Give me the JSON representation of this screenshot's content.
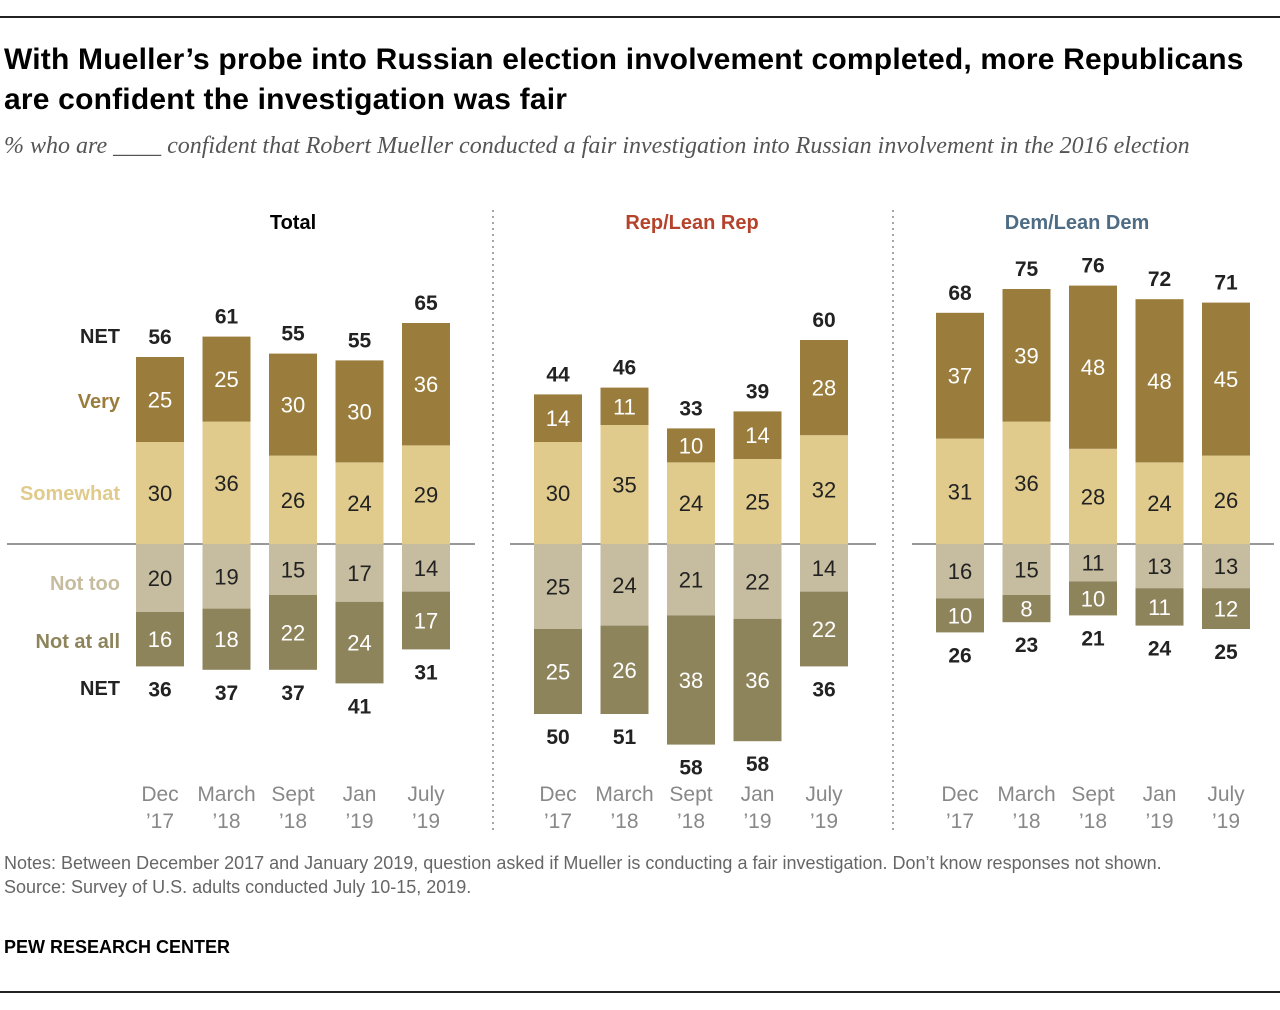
{
  "title": "With Mueller’s probe into Russian election involvement completed, more Republicans are confident the investigation was fair",
  "subtitle": "% who are ____ confident that Robert Mueller conducted a fair investigation into Russian involvement in the 2016 election",
  "notes": "Notes: Between December 2017 and January 2019, question asked if Mueller is conducting a fair investigation. Don’t know responses not shown.",
  "source": "Source: Survey of U.S. adults conducted July 10-15, 2019.",
  "brand": "PEW RESEARCH CENTER",
  "chart_data": {
    "type": "bar",
    "stacked": "diverging",
    "categories": [
      [
        "Dec",
        "’17"
      ],
      [
        "March",
        "’18"
      ],
      [
        "Sept",
        "’18"
      ],
      [
        "Jan",
        "’19"
      ],
      [
        "July",
        "’19"
      ]
    ],
    "row_labels": {
      "net_top": "NET",
      "very": "Very",
      "somewhat": "Somewhat",
      "not_too": "Not too",
      "not_at_all": "Not at all",
      "net_bottom": "NET"
    },
    "colors": {
      "very": "#9a7d3c",
      "somewhat": "#e0cb8c",
      "not_too": "#c6bc9f",
      "not_at_all": "#8e845c",
      "rep": "#b5432c",
      "dem": "#4e6c84",
      "total": "#000000"
    },
    "panels": [
      {
        "name": "Total",
        "color_key": "total",
        "very": [
          25,
          25,
          30,
          30,
          36
        ],
        "somewhat": [
          30,
          36,
          26,
          24,
          29
        ],
        "net_confident": [
          56,
          61,
          55,
          55,
          65
        ],
        "not_too": [
          20,
          19,
          15,
          17,
          14
        ],
        "not_at_all": [
          16,
          18,
          22,
          24,
          17
        ],
        "net_not": [
          36,
          37,
          37,
          41,
          31
        ]
      },
      {
        "name": "Rep/Lean Rep",
        "color_key": "rep",
        "very": [
          14,
          11,
          10,
          14,
          28
        ],
        "somewhat": [
          30,
          35,
          24,
          25,
          32
        ],
        "net_confident": [
          44,
          46,
          33,
          39,
          60
        ],
        "not_too": [
          25,
          24,
          21,
          22,
          14
        ],
        "not_at_all": [
          25,
          26,
          38,
          36,
          22
        ],
        "net_not": [
          50,
          51,
          58,
          58,
          36
        ]
      },
      {
        "name": "Dem/Lean Dem",
        "color_key": "dem",
        "very": [
          37,
          39,
          48,
          48,
          45
        ],
        "somewhat": [
          31,
          36,
          28,
          24,
          26
        ],
        "net_confident": [
          68,
          75,
          76,
          72,
          71
        ],
        "not_too": [
          16,
          15,
          11,
          13,
          13
        ],
        "not_at_all": [
          10,
          8,
          10,
          11,
          12
        ],
        "net_not": [
          26,
          23,
          21,
          24,
          25
        ]
      }
    ]
  }
}
